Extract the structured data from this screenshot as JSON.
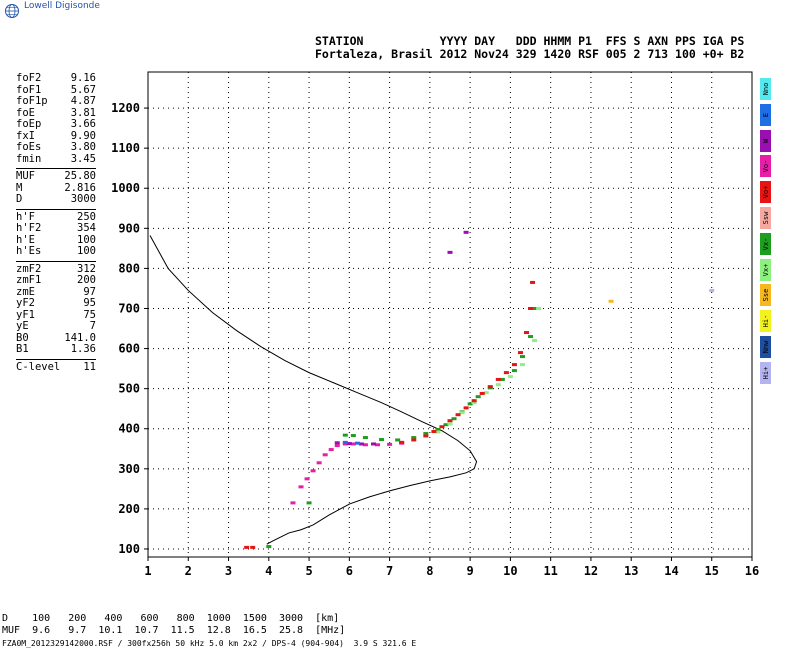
{
  "brand": {
    "name": "Lowell Digisonde",
    "icon": "globe-icon"
  },
  "header": {
    "line1": "STATION           YYYY DAY   DDD HHMM P1  FFS S AXN PPS IGA PS",
    "line2": "Fortaleza, Brasil 2012 Nov24 329 1420 RSF 005 2 713 100 +0+ B2"
  },
  "params": [
    {
      "group": [
        {
          "label": "foF2",
          "value": "9.16"
        },
        {
          "label": "foF1",
          "value": "5.67"
        },
        {
          "label": "foF1p",
          "value": "4.87"
        },
        {
          "label": "foE",
          "value": "3.81"
        },
        {
          "label": "foEp",
          "value": "3.66"
        },
        {
          "label": "fxI",
          "value": "9.90"
        },
        {
          "label": "foEs",
          "value": "3.80"
        },
        {
          "label": "fmin",
          "value": "3.45"
        }
      ]
    },
    {
      "group": [
        {
          "label": "MUF",
          "value": "25.80"
        },
        {
          "label": "M",
          "value": "2.816"
        },
        {
          "label": "D",
          "value": "3000"
        }
      ]
    },
    {
      "group": [
        {
          "label": "h'F",
          "value": "250"
        },
        {
          "label": "h'F2",
          "value": "354"
        },
        {
          "label": "h'E",
          "value": "100"
        },
        {
          "label": "h'Es",
          "value": "100"
        }
      ]
    },
    {
      "group": [
        {
          "label": "zmF2",
          "value": "312"
        },
        {
          "label": "zmF1",
          "value": "200"
        },
        {
          "label": "zmE",
          "value": "97"
        },
        {
          "label": "yF2",
          "value": "95"
        },
        {
          "label": "yF1",
          "value": "75"
        },
        {
          "label": "yE",
          "value": "7"
        },
        {
          "label": "B0",
          "value": "141.0"
        },
        {
          "label": "B1",
          "value": "1.36"
        }
      ]
    },
    {
      "group": [
        {
          "label": "C-level",
          "value": "11"
        }
      ]
    }
  ],
  "legend": [
    {
      "label": "Nno",
      "color": "#55e8ee"
    },
    {
      "label": "E",
      "color": "#1e6ee6"
    },
    {
      "label": "W",
      "color": "#9a0fb0"
    },
    {
      "label": "Vo-",
      "color": "#e61ea8"
    },
    {
      "label": "Vo+",
      "color": "#e61414"
    },
    {
      "label": "Ssw",
      "color": "#f4a8a0"
    },
    {
      "label": "Vx-",
      "color": "#1e9e1e"
    },
    {
      "label": "Vx+",
      "color": "#8ef080"
    },
    {
      "label": "Sse",
      "color": "#f6b81e"
    },
    {
      "label": "Hi-",
      "color": "#f2f21e"
    },
    {
      "label": "Nnw",
      "color": "#1e4ea0"
    },
    {
      "label": "Hi+",
      "color": "#b4b4f0"
    }
  ],
  "muf_table": {
    "line1": "D    100   200   400   600   800  1000  1500  3000  [km]",
    "line2": "MUF  9.6   9.7  10.1  10.7  11.5  12.8  16.5  25.8  [MHz]"
  },
  "footer": "FZA0M_2012329142000.RSF / 300fx256h 50 kHz 5.0 km 2x2 / DPS-4 (904-904)  3.9 S 321.6 E",
  "chart_data": {
    "type": "scatter",
    "xlim": [
      1,
      16
    ],
    "ylim": [
      80,
      1290
    ],
    "x_ticks": [
      1,
      2,
      3,
      4,
      5,
      6,
      7,
      8,
      9,
      10,
      11,
      12,
      13,
      14,
      15,
      16
    ],
    "y_ticks": [
      100,
      200,
      300,
      400,
      500,
      600,
      700,
      800,
      900,
      1000,
      1100,
      1200
    ],
    "grid": "dotted",
    "profile": {
      "color": "#000000",
      "x": [
        1.05,
        1.5,
        2.0,
        2.6,
        3.2,
        3.8,
        4.4,
        5.0,
        5.6,
        6.2,
        6.8,
        7.3,
        7.8,
        8.3,
        8.7,
        9.0,
        9.16,
        9.1,
        8.9,
        8.5,
        8.0,
        7.5,
        7.0,
        6.5,
        6.0,
        5.5,
        5.1,
        4.8,
        4.5,
        4.3,
        4.1,
        3.95
      ],
      "y": [
        882,
        800,
        745,
        690,
        645,
        605,
        570,
        540,
        515,
        490,
        465,
        442,
        418,
        395,
        370,
        345,
        318,
        300,
        290,
        280,
        270,
        258,
        245,
        230,
        212,
        185,
        160,
        148,
        140,
        130,
        120,
        112
      ]
    },
    "traces": [
      {
        "label": "Vx-",
        "color": "#1e9e1e",
        "x": [
          4.0,
          5.0,
          5.9,
          6.1,
          6.4,
          6.8,
          7.2,
          7.6,
          7.9,
          8.2,
          8.4,
          8.6,
          8.8,
          9.0,
          9.2,
          9.5,
          9.8,
          10.1,
          10.3,
          10.5,
          10.6
        ],
        "y": [
          106,
          215,
          384,
          383,
          378,
          373,
          372,
          378,
          388,
          398,
          410,
          425,
          442,
          462,
          480,
          502,
          523,
          545,
          580,
          630,
          700
        ]
      },
      {
        "label": "Vx+",
        "color": "#8ef080",
        "x": [
          8.2,
          8.5,
          8.8,
          9.1,
          9.4,
          9.7,
          10.0,
          10.3,
          10.6,
          10.7
        ],
        "y": [
          392,
          412,
          440,
          465,
          490,
          510,
          530,
          560,
          620,
          700
        ]
      },
      {
        "label": "Vo-",
        "color": "#e61ea8",
        "x": [
          4.6,
          4.8,
          4.95,
          5.1,
          5.25,
          5.4,
          5.55,
          5.7,
          5.9,
          6.1,
          6.4,
          6.7,
          7.0,
          7.3
        ],
        "y": [
          215,
          255,
          275,
          295,
          315,
          335,
          348,
          358,
          362,
          362,
          360,
          360,
          361,
          364
        ]
      },
      {
        "label": "Vo+",
        "color": "#e61414",
        "x": [
          3.45,
          3.6,
          7.3,
          7.6,
          7.9,
          8.1,
          8.3,
          8.5,
          8.7,
          8.9,
          9.1,
          9.3,
          9.5,
          9.7,
          9.9,
          10.1,
          10.25,
          10.4,
          10.5,
          10.55
        ],
        "y": [
          104,
          104,
          366,
          372,
          382,
          393,
          405,
          420,
          435,
          452,
          470,
          488,
          505,
          523,
          540,
          560,
          590,
          640,
          700,
          765
        ]
      },
      {
        "label": "W",
        "color": "#9a0fb0",
        "x": [
          5.7,
          6.0,
          6.3,
          6.6,
          8.5,
          8.9
        ],
        "y": [
          365,
          363,
          362,
          362,
          840,
          890
        ]
      },
      {
        "label": "E",
        "color": "#1e6ee6",
        "x": [
          5.9,
          6.2
        ],
        "y": [
          366,
          364
        ]
      },
      {
        "label": "Sse",
        "color": "#f6b81e",
        "x": [
          12.5
        ],
        "y": [
          718
        ]
      },
      {
        "label": "Hi+",
        "color": "#b4b4f0",
        "x": [
          15.0
        ],
        "y": [
          745
        ]
      }
    ]
  }
}
